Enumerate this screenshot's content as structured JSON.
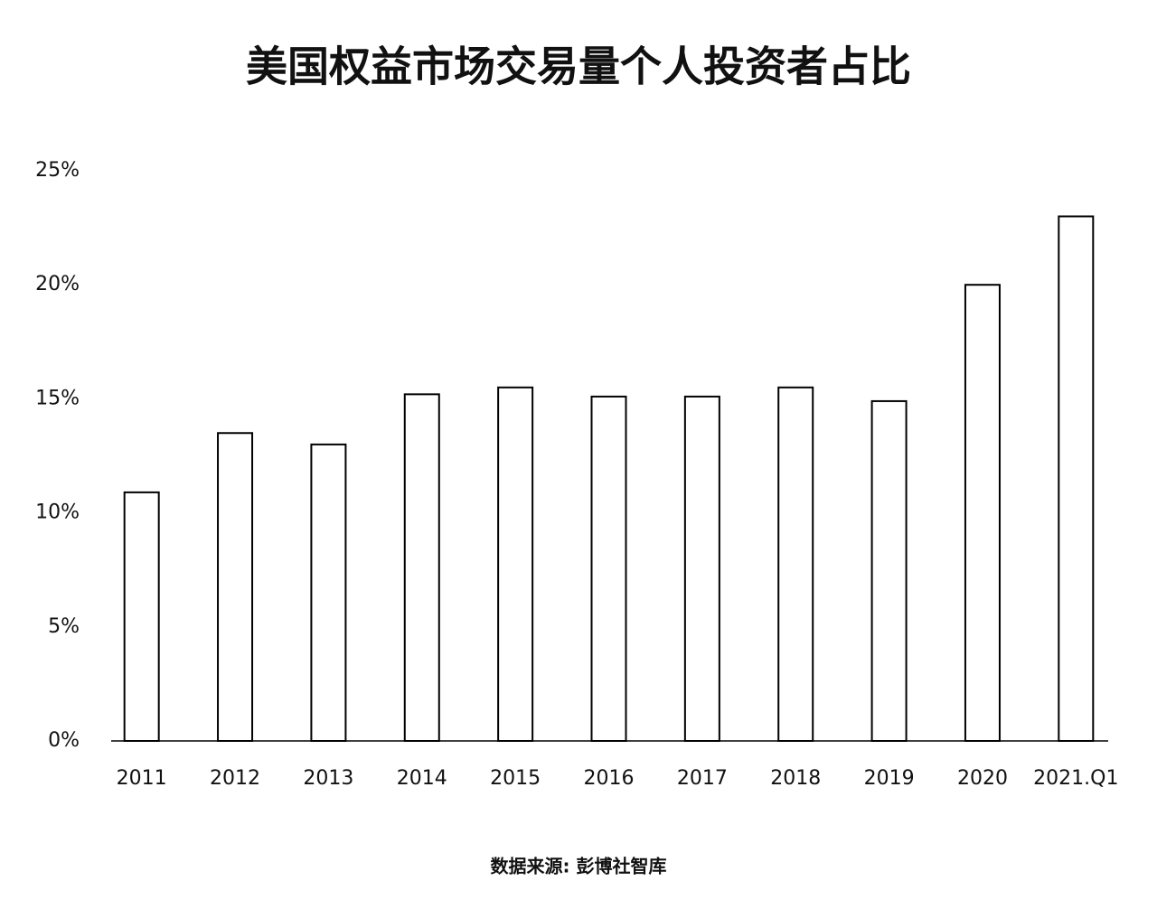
{
  "chart_data": {
    "type": "bar",
    "title": "美国权益市场交易量个人投资者占比",
    "source": "数据来源: 彭博社智库",
    "categories": [
      "2011",
      "2012",
      "2013",
      "2014",
      "2015",
      "2016",
      "2017",
      "2018",
      "2019",
      "2020",
      "2021.Q1"
    ],
    "values": [
      10.9,
      13.5,
      13.0,
      15.2,
      15.5,
      15.1,
      15.1,
      15.5,
      14.9,
      20.0,
      23.0
    ],
    "color": "#ffffff",
    "edgecolor": "#000000",
    "ylim": [
      0,
      25
    ],
    "yticks": [
      {
        "value": 0,
        "label": "0%"
      },
      {
        "value": 5,
        "label": "5%"
      },
      {
        "value": 10,
        "label": "10%"
      },
      {
        "value": 15,
        "label": "15%"
      },
      {
        "value": 20,
        "label": "20%"
      },
      {
        "value": 25,
        "label": "25%"
      }
    ],
    "grid": false
  }
}
